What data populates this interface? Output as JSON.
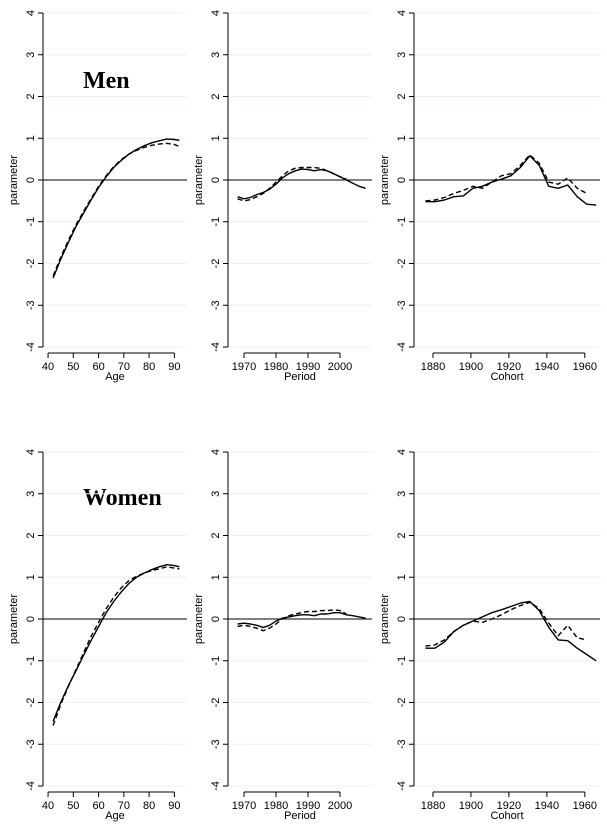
{
  "figure": {
    "groups": [
      {
        "title": "Men"
      },
      {
        "title": "Women"
      }
    ]
  },
  "chart_data": [
    {
      "type": "line",
      "group": "Men",
      "xlabel": "Age",
      "ylabel": "parameter",
      "xlim": [
        38,
        95
      ],
      "ylim": [
        -4,
        4
      ],
      "xticks": [
        40,
        50,
        60,
        70,
        80,
        90
      ],
      "yticks": [
        -4,
        -3,
        -2,
        -1,
        0,
        1,
        2,
        3,
        4
      ],
      "ytick_labels": [
        "-4",
        "-3",
        "-2",
        "-1",
        "0",
        "1",
        "2",
        "3",
        "4"
      ],
      "grid": true,
      "zero_line": true,
      "series": [
        {
          "style": "solid",
          "x": [
            42,
            45,
            48,
            51,
            54,
            57,
            60,
            63,
            66,
            69,
            72,
            75,
            78,
            81,
            84,
            87,
            90,
            92
          ],
          "y": [
            -2.35,
            -1.9,
            -1.5,
            -1.12,
            -0.8,
            -0.48,
            -0.18,
            0.08,
            0.3,
            0.47,
            0.62,
            0.73,
            0.82,
            0.89,
            0.94,
            0.98,
            0.97,
            0.95
          ]
        },
        {
          "style": "dashed",
          "x": [
            42,
            45,
            48,
            51,
            54,
            57,
            60,
            63,
            66,
            69,
            72,
            75,
            78,
            81,
            84,
            87,
            90,
            92
          ],
          "y": [
            -2.3,
            -1.85,
            -1.45,
            -1.08,
            -0.76,
            -0.45,
            -0.15,
            0.1,
            0.32,
            0.49,
            0.62,
            0.71,
            0.78,
            0.83,
            0.86,
            0.88,
            0.85,
            0.8
          ]
        }
      ]
    },
    {
      "type": "line",
      "group": "Men",
      "xlabel": "Period",
      "ylabel": "parameter",
      "xlim": [
        1965,
        2010
      ],
      "ylim": [
        -4,
        4
      ],
      "xticks": [
        1970,
        1980,
        1990,
        2000
      ],
      "yticks": [
        -4,
        -3,
        -2,
        -1,
        0,
        1,
        2,
        3,
        4
      ],
      "ytick_labels": [
        "-4",
        "-3",
        "-2",
        "-1",
        "0",
        "1",
        "2",
        "3",
        "4"
      ],
      "grid": true,
      "zero_line": true,
      "series": [
        {
          "style": "solid",
          "x": [
            1968,
            1970,
            1972,
            1974,
            1976,
            1978,
            1980,
            1982,
            1984,
            1986,
            1988,
            1990,
            1992,
            1994,
            1996,
            1998,
            2000,
            2002,
            2004,
            2006,
            2008
          ],
          "y": [
            -0.4,
            -0.45,
            -0.42,
            -0.35,
            -0.3,
            -0.22,
            -0.1,
            0.05,
            0.15,
            0.22,
            0.26,
            0.25,
            0.22,
            0.25,
            0.22,
            0.15,
            0.08,
            0.0,
            -0.08,
            -0.15,
            -0.2
          ]
        },
        {
          "style": "dashed",
          "x": [
            1968,
            1970,
            1972,
            1974,
            1976,
            1978,
            1980,
            1982,
            1984,
            1986,
            1988,
            1990,
            1992,
            1994,
            1996,
            1998,
            2000,
            2002
          ],
          "y": [
            -0.45,
            -0.5,
            -0.47,
            -0.4,
            -0.32,
            -0.2,
            -0.05,
            0.1,
            0.22,
            0.28,
            0.3,
            0.3,
            0.3,
            0.28,
            0.22,
            0.15,
            0.08,
            0.02
          ]
        }
      ]
    },
    {
      "type": "line",
      "group": "Men",
      "xlabel": "Cohort",
      "ylabel": "parameter",
      "xlim": [
        1870,
        1968
      ],
      "ylim": [
        -4,
        4
      ],
      "xticks": [
        1880,
        1900,
        1920,
        1940,
        1960
      ],
      "xtick_labels": [
        "1880",
        "1900",
        "1920",
        "1940",
        "1960"
      ],
      "yticks": [
        -4,
        -3,
        -2,
        -1,
        0,
        1,
        2,
        3,
        4
      ],
      "ytick_labels": [
        "-4",
        "-3",
        "-2",
        "-1",
        "0",
        "1",
        "2",
        "3",
        "4"
      ],
      "grid": true,
      "zero_line": true,
      "series": [
        {
          "style": "solid",
          "x": [
            1876,
            1881,
            1886,
            1891,
            1896,
            1901,
            1906,
            1911,
            1916,
            1921,
            1926,
            1931,
            1936,
            1941,
            1946,
            1951,
            1956,
            1961,
            1966
          ],
          "y": [
            -0.52,
            -0.52,
            -0.48,
            -0.4,
            -0.38,
            -0.2,
            -0.15,
            -0.05,
            0.02,
            0.1,
            0.3,
            0.58,
            0.35,
            -0.15,
            -0.2,
            -0.12,
            -0.4,
            -0.58,
            -0.6
          ]
        },
        {
          "style": "dashed",
          "x": [
            1876,
            1881,
            1886,
            1891,
            1896,
            1901,
            1906,
            1911,
            1916,
            1921,
            1926,
            1931,
            1936,
            1941,
            1946,
            1951,
            1956,
            1961
          ],
          "y": [
            -0.5,
            -0.48,
            -0.42,
            -0.32,
            -0.25,
            -0.15,
            -0.2,
            -0.05,
            0.1,
            0.15,
            0.35,
            0.6,
            0.4,
            -0.05,
            -0.1,
            0.05,
            -0.2,
            -0.32
          ]
        }
      ]
    },
    {
      "type": "line",
      "group": "Women",
      "xlabel": "Age",
      "ylabel": "parameter",
      "xlim": [
        38,
        95
      ],
      "ylim": [
        -4,
        4
      ],
      "xticks": [
        40,
        50,
        60,
        70,
        80,
        90
      ],
      "yticks": [
        -4,
        -3,
        -2,
        -1,
        0,
        1,
        2,
        3,
        4
      ],
      "ytick_labels": [
        "-4",
        "-3",
        "-2",
        "-1",
        "0",
        "1",
        "2",
        "3",
        "4"
      ],
      "grid": true,
      "zero_line": true,
      "series": [
        {
          "style": "solid",
          "x": [
            42,
            45,
            48,
            51,
            54,
            57,
            60,
            63,
            66,
            69,
            72,
            75,
            78,
            81,
            84,
            87,
            90,
            92
          ],
          "y": [
            -2.45,
            -2.0,
            -1.6,
            -1.25,
            -0.88,
            -0.52,
            -0.18,
            0.15,
            0.42,
            0.65,
            0.85,
            1.0,
            1.1,
            1.18,
            1.25,
            1.3,
            1.28,
            1.25
          ]
        },
        {
          "style": "dashed",
          "x": [
            42,
            45,
            48,
            51,
            54,
            57,
            60,
            63,
            66,
            69,
            72,
            75,
            78,
            81,
            84,
            87,
            90,
            92
          ],
          "y": [
            -2.55,
            -2.05,
            -1.62,
            -1.22,
            -0.82,
            -0.42,
            -0.08,
            0.25,
            0.52,
            0.75,
            0.92,
            1.02,
            1.1,
            1.16,
            1.2,
            1.25,
            1.22,
            1.2
          ]
        }
      ]
    },
    {
      "type": "line",
      "group": "Women",
      "xlabel": "Period",
      "ylabel": "parameter",
      "xlim": [
        1965,
        2010
      ],
      "ylim": [
        -4,
        4
      ],
      "xticks": [
        1970,
        1980,
        1990,
        2000
      ],
      "yticks": [
        -4,
        -3,
        -2,
        -1,
        0,
        1,
        2,
        3,
        4
      ],
      "ytick_labels": [
        "-4",
        "-3",
        "-2",
        "-1",
        "0",
        "1",
        "2",
        "3",
        "4"
      ],
      "grid": true,
      "zero_line": true,
      "series": [
        {
          "style": "solid",
          "x": [
            1968,
            1970,
            1972,
            1974,
            1976,
            1978,
            1980,
            1982,
            1984,
            1986,
            1988,
            1990,
            1992,
            1994,
            1996,
            1998,
            2000,
            2002,
            2004,
            2006,
            2008
          ],
          "y": [
            -0.12,
            -0.1,
            -0.12,
            -0.15,
            -0.2,
            -0.15,
            -0.05,
            0.02,
            0.05,
            0.08,
            0.1,
            0.1,
            0.08,
            0.12,
            0.12,
            0.15,
            0.15,
            0.1,
            0.08,
            0.05,
            0.02
          ]
        },
        {
          "style": "dashed",
          "x": [
            1968,
            1970,
            1972,
            1974,
            1976,
            1978,
            1980,
            1982,
            1984,
            1986,
            1988,
            1990,
            1992,
            1994,
            1996,
            1998,
            2000,
            2002
          ],
          "y": [
            -0.18,
            -0.15,
            -0.18,
            -0.22,
            -0.28,
            -0.22,
            -0.12,
            0.0,
            0.08,
            0.12,
            0.15,
            0.18,
            0.18,
            0.2,
            0.2,
            0.22,
            0.2,
            0.12
          ]
        }
      ]
    },
    {
      "type": "line",
      "group": "Women",
      "xlabel": "Cohort",
      "ylabel": "parameter",
      "xlim": [
        1870,
        1968
      ],
      "ylim": [
        -4,
        4
      ],
      "xticks": [
        1880,
        1900,
        1920,
        1940,
        1960
      ],
      "xtick_labels": [
        "1880",
        "1900",
        "1920",
        "1940",
        "1960"
      ],
      "yticks": [
        -4,
        -3,
        -2,
        -1,
        0,
        1,
        2,
        3,
        4
      ],
      "ytick_labels": [
        "-4",
        "-3",
        "-2",
        "-1",
        "0",
        "1",
        "2",
        "3",
        "4"
      ],
      "grid": true,
      "zero_line": true,
      "series": [
        {
          "style": "solid",
          "x": [
            1876,
            1881,
            1886,
            1891,
            1896,
            1901,
            1906,
            1911,
            1916,
            1921,
            1926,
            1931,
            1936,
            1941,
            1946,
            1951,
            1956,
            1961,
            1966
          ],
          "y": [
            -0.7,
            -0.7,
            -0.55,
            -0.3,
            -0.15,
            -0.05,
            0.05,
            0.15,
            0.22,
            0.3,
            0.38,
            0.42,
            0.2,
            -0.2,
            -0.5,
            -0.52,
            -0.7,
            -0.85,
            -1.0
          ]
        },
        {
          "style": "dashed",
          "x": [
            1876,
            1881,
            1886,
            1891,
            1896,
            1901,
            1906,
            1911,
            1916,
            1921,
            1926,
            1931,
            1936,
            1941,
            1946,
            1951,
            1956,
            1961
          ],
          "y": [
            -0.65,
            -0.62,
            -0.5,
            -0.3,
            -0.15,
            -0.05,
            -0.08,
            0.0,
            0.1,
            0.22,
            0.32,
            0.4,
            0.25,
            -0.1,
            -0.4,
            -0.15,
            -0.45,
            -0.5
          ]
        }
      ]
    }
  ]
}
